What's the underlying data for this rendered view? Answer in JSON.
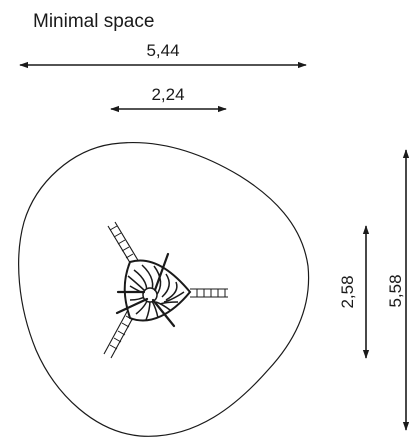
{
  "title": "Minimal space",
  "dimensions": {
    "overall_width": "5,44",
    "equipment_width": "2,24",
    "equipment_depth": "2,58",
    "overall_depth": "5,58"
  }
}
